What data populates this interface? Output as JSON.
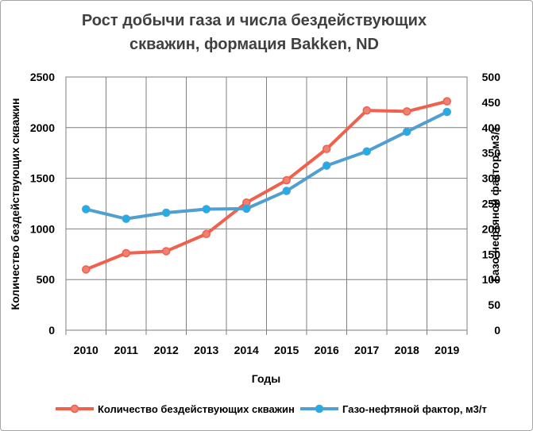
{
  "chart_data": {
    "type": "line",
    "title_lines": [
      "Рост добычи газа и числа бездействующих",
      "скважин, формация Bakken, ND"
    ],
    "xlabel": "Годы",
    "ylabel_left": "Количество бездействующих скважин",
    "ylabel_right": "Газо-нефтяной фактор, м3/т",
    "categories": [
      "2010",
      "2011",
      "2012",
      "2013",
      "2014",
      "2015",
      "2016",
      "2017",
      "2018",
      "2019"
    ],
    "ylim_left": [
      0,
      2500
    ],
    "ylim_right": [
      0,
      500
    ],
    "left_ticks": [
      "0",
      "500",
      "1000",
      "1500",
      "2000",
      "2500"
    ],
    "right_ticks": [
      "0",
      "50",
      "100",
      "150",
      "200",
      "250",
      "300",
      "350",
      "400",
      "450",
      "500"
    ],
    "grid": true,
    "legend_position": "bottom",
    "series": [
      {
        "name": "Количество бездействующих скважин",
        "axis": "left",
        "color": "#f0604d",
        "marker_fill": "#f08070",
        "values": [
          600,
          760,
          780,
          950,
          1260,
          1480,
          1790,
          2170,
          2160,
          2260
        ]
      },
      {
        "name": "Газо-нефтяной фактор, м3/т",
        "axis": "right",
        "color": "#4f9fd0",
        "marker_fill": "#1ab0ea",
        "values": [
          239,
          220,
          232,
          239,
          240,
          275,
          325,
          353,
          392,
          431
        ]
      }
    ]
  }
}
